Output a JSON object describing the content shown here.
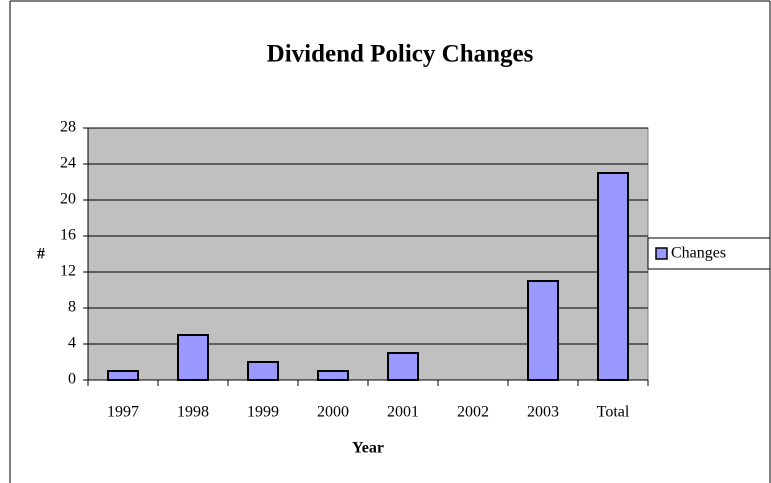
{
  "chart_data": {
    "type": "bar",
    "title": "Dividend Policy Changes",
    "x_label": "Year",
    "y_label": "#",
    "categories": [
      "1997",
      "1998",
      "1999",
      "2000",
      "2001",
      "2002",
      "2003",
      "Total"
    ],
    "series": [
      {
        "name": "Changes",
        "color": "#9999ff",
        "values": [
          1,
          5,
          2,
          1,
          3,
          0,
          11,
          23
        ]
      }
    ],
    "ylim": [
      0,
      28
    ],
    "yticks": [
      0,
      4,
      8,
      12,
      16,
      20,
      24,
      28
    ],
    "grid": true,
    "legend": "right"
  }
}
